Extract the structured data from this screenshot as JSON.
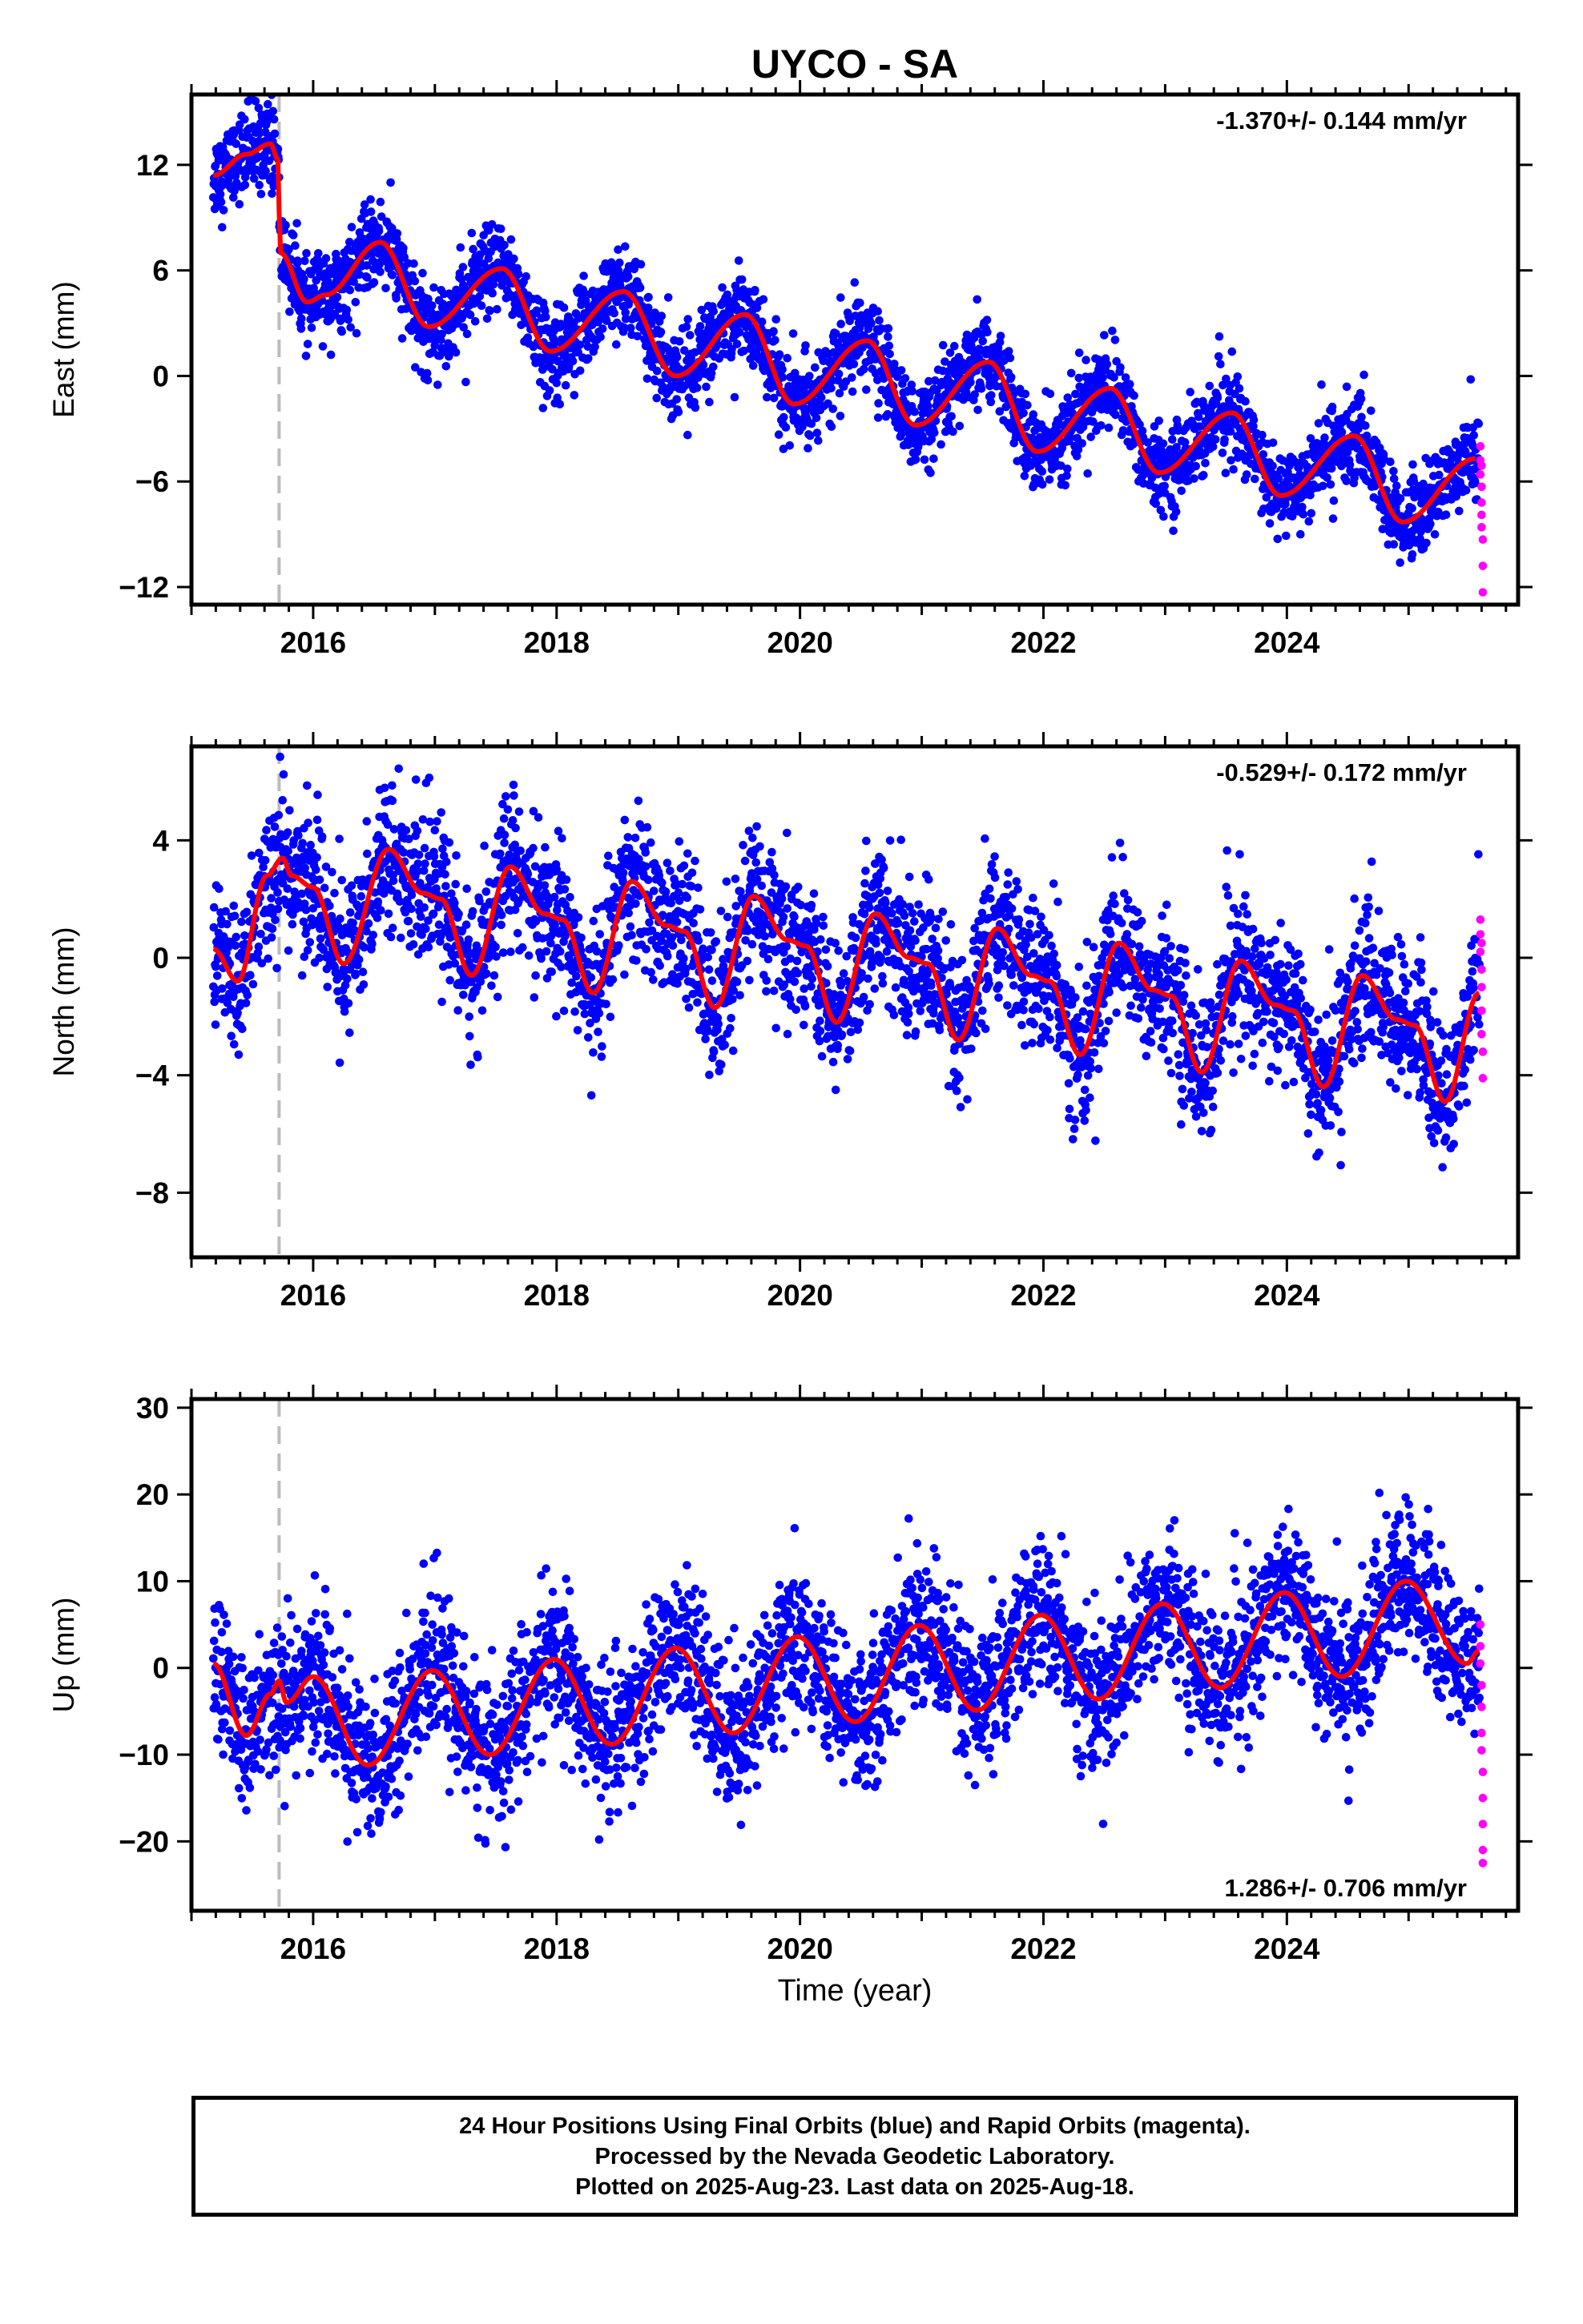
{
  "title": "UYCO - SA",
  "xlabel": "Time (year)",
  "caption": [
    "24 Hour Positions Using Final Orbits (blue) and Rapid Orbits (magenta).",
    "Processed by the Nevada Geodetic Laboratory.",
    "Plotted on 2025-Aug-23. Last data on 2025-Aug-18."
  ],
  "colors": {
    "final": "#0000ff",
    "rapid": "#ff00ff",
    "model": "#ff0000",
    "step": "#bbbbbb"
  },
  "chart_data": [
    {
      "type": "scatter",
      "component": "East",
      "ylabel": "East (mm)",
      "rate_label": "-1.370+/- 0.144 mm/yr",
      "rate_position": "top-right",
      "xlim": [
        2015.0,
        2025.9
      ],
      "ylim": [
        -13,
        16
      ],
      "xticks": [
        2016,
        2018,
        2020,
        2022,
        2024
      ],
      "yticks": [
        -12,
        -6,
        0,
        6,
        12
      ],
      "rate_mm_per_yr": -1.37,
      "step_dates": [
        2015.72
      ],
      "step_sizes": [
        -6.0
      ],
      "model_knots": [
        [
          2015.18,
          11.4
        ],
        [
          2015.45,
          12.6
        ],
        [
          2015.65,
          13.2
        ],
        [
          2015.71,
          12.3
        ],
        [
          2015.73,
          7.0
        ],
        [
          2015.95,
          4.2
        ],
        [
          2016.1,
          4.6
        ],
        [
          2016.55,
          7.6
        ],
        [
          2016.95,
          2.8
        ],
        [
          2017.55,
          6.1
        ],
        [
          2017.95,
          1.4
        ],
        [
          2018.55,
          4.8
        ],
        [
          2018.98,
          0.0
        ],
        [
          2019.55,
          3.5
        ],
        [
          2019.95,
          -1.6
        ],
        [
          2020.55,
          2.0
        ],
        [
          2020.95,
          -2.8
        ],
        [
          2021.55,
          0.8
        ],
        [
          2021.95,
          -4.3
        ],
        [
          2022.55,
          -0.7
        ],
        [
          2022.95,
          -5.5
        ],
        [
          2023.55,
          -2.1
        ],
        [
          2023.95,
          -6.8
        ],
        [
          2024.55,
          -3.4
        ],
        [
          2024.95,
          -8.3
        ],
        [
          2025.55,
          -4.7
        ]
      ],
      "scatter_sigma": 1.2,
      "rapid_points": [
        [
          2025.59,
          -4.0
        ],
        [
          2025.59,
          -4.8
        ],
        [
          2025.59,
          -5.6
        ],
        [
          2025.6,
          -6.3
        ],
        [
          2025.6,
          -7.2
        ],
        [
          2025.6,
          -7.9
        ],
        [
          2025.6,
          -8.6
        ],
        [
          2025.61,
          -9.3
        ],
        [
          2025.61,
          -10.8
        ],
        [
          2025.61,
          -12.3
        ],
        [
          2025.6,
          -5.1
        ]
      ]
    },
    {
      "type": "scatter",
      "component": "North",
      "ylabel": "North (mm)",
      "rate_label": "-0.529+/- 0.172 mm/yr",
      "rate_position": "top-right",
      "xlim": [
        2015.0,
        2025.9
      ],
      "ylim": [
        -10.2,
        7.2
      ],
      "xticks": [
        2016,
        2018,
        2020,
        2022,
        2024
      ],
      "yticks": [
        -8,
        -4,
        0,
        4
      ],
      "rate_mm_per_yr": -0.529,
      "step_dates": [
        2015.72
      ],
      "step_sizes": [
        0.0
      ],
      "model_knots": [
        [
          2015.18,
          0.3
        ],
        [
          2015.38,
          -0.8
        ],
        [
          2015.62,
          2.8
        ],
        [
          2015.75,
          3.4
        ],
        [
          2015.82,
          2.8
        ],
        [
          2016.0,
          2.4
        ],
        [
          2016.25,
          -0.2
        ],
        [
          2016.62,
          3.7
        ],
        [
          2016.9,
          2.2
        ],
        [
          2017.05,
          2.0
        ],
        [
          2017.3,
          -0.6
        ],
        [
          2017.62,
          3.1
        ],
        [
          2017.9,
          1.5
        ],
        [
          2018.05,
          1.3
        ],
        [
          2018.3,
          -1.2
        ],
        [
          2018.62,
          2.6
        ],
        [
          2018.9,
          1.1
        ],
        [
          2019.05,
          0.9
        ],
        [
          2019.3,
          -1.7
        ],
        [
          2019.62,
          2.1
        ],
        [
          2019.9,
          0.6
        ],
        [
          2020.05,
          0.4
        ],
        [
          2020.3,
          -2.2
        ],
        [
          2020.62,
          1.5
        ],
        [
          2020.9,
          0.0
        ],
        [
          2021.05,
          -0.2
        ],
        [
          2021.3,
          -2.8
        ],
        [
          2021.62,
          1.0
        ],
        [
          2021.9,
          -0.6
        ],
        [
          2022.05,
          -0.8
        ],
        [
          2022.3,
          -3.3
        ],
        [
          2022.62,
          0.5
        ],
        [
          2022.9,
          -1.1
        ],
        [
          2023.05,
          -1.3
        ],
        [
          2023.3,
          -3.9
        ],
        [
          2023.62,
          -0.1
        ],
        [
          2023.9,
          -1.6
        ],
        [
          2024.05,
          -1.8
        ],
        [
          2024.3,
          -4.4
        ],
        [
          2024.62,
          -0.6
        ],
        [
          2024.9,
          -2.1
        ],
        [
          2025.05,
          -2.3
        ],
        [
          2025.3,
          -4.9
        ],
        [
          2025.58,
          -1.2
        ]
      ],
      "scatter_sigma": 1.25,
      "rapid_points": [
        [
          2025.59,
          1.3
        ],
        [
          2025.59,
          0.8
        ],
        [
          2025.59,
          0.2
        ],
        [
          2025.6,
          -0.4
        ],
        [
          2025.6,
          -1.0
        ],
        [
          2025.6,
          -1.8
        ],
        [
          2025.6,
          -2.6
        ],
        [
          2025.61,
          -3.2
        ],
        [
          2025.61,
          -4.1
        ],
        [
          2025.6,
          0.5
        ]
      ]
    },
    {
      "type": "scatter",
      "component": "Up",
      "ylabel": "Up (mm)",
      "rate_label": "1.286+/- 0.706 mm/yr",
      "rate_position": "bottom-right",
      "xlim": [
        2015.0,
        2025.9
      ],
      "ylim": [
        -28,
        31
      ],
      "xticks": [
        2016,
        2018,
        2020,
        2022,
        2024
      ],
      "yticks": [
        -20,
        -10,
        0,
        10,
        20,
        30
      ],
      "rate_mm_per_yr": 1.286,
      "step_dates": [
        2015.72
      ],
      "step_sizes": [
        0.0
      ],
      "model_knots": [
        [
          2015.18,
          0.5
        ],
        [
          2015.45,
          -7.8
        ],
        [
          2015.65,
          -3.0
        ],
        [
          2015.72,
          -1.5
        ],
        [
          2015.78,
          -4.0
        ],
        [
          2016.0,
          -1.0
        ],
        [
          2016.45,
          -11.2
        ],
        [
          2016.98,
          -0.3
        ],
        [
          2017.45,
          -10.0
        ],
        [
          2017.98,
          1.0
        ],
        [
          2018.45,
          -8.8
        ],
        [
          2018.98,
          2.3
        ],
        [
          2019.45,
          -7.5
        ],
        [
          2019.98,
          3.6
        ],
        [
          2020.45,
          -6.2
        ],
        [
          2020.98,
          4.9
        ],
        [
          2021.45,
          -4.9
        ],
        [
          2021.98,
          6.1
        ],
        [
          2022.45,
          -3.6
        ],
        [
          2022.98,
          7.4
        ],
        [
          2023.45,
          -2.3
        ],
        [
          2023.98,
          8.7
        ],
        [
          2024.45,
          -1.0
        ],
        [
          2024.98,
          10.0
        ],
        [
          2025.48,
          0.5
        ],
        [
          2025.58,
          2.0
        ]
      ],
      "scatter_sigma": 4.3,
      "rapid_points": [
        [
          2025.59,
          5.0
        ],
        [
          2025.59,
          2.5
        ],
        [
          2025.59,
          0.5
        ],
        [
          2025.6,
          -2.0
        ],
        [
          2025.6,
          -4.5
        ],
        [
          2025.6,
          -7.5
        ],
        [
          2025.6,
          -9.5
        ],
        [
          2025.61,
          -12.0
        ],
        [
          2025.61,
          -15.0
        ],
        [
          2025.61,
          -18.0
        ],
        [
          2025.61,
          -21.0
        ],
        [
          2025.61,
          -22.5
        ]
      ]
    }
  ]
}
